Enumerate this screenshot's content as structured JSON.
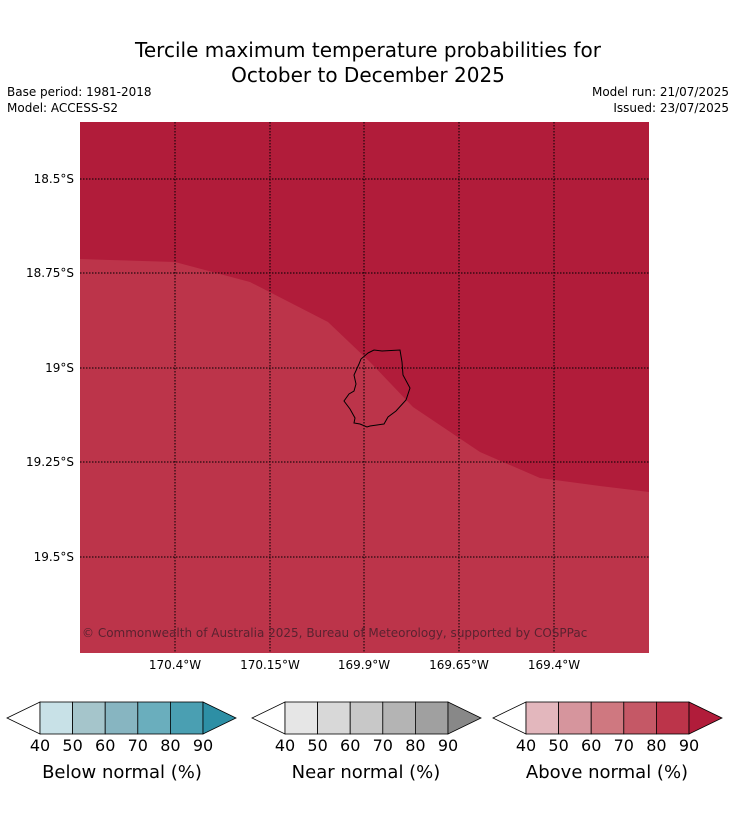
{
  "title": {
    "line1": "Tercile maximum temperature probabilities for",
    "line2": "October to December 2025"
  },
  "meta": {
    "base_period": "Base period: 1981-2018",
    "model": "Model: ACCESS-S2",
    "model_run": "Model run: 21/07/2025",
    "issued": "Issued: 23/07/2025"
  },
  "map": {
    "lat_labels": [
      "18.5°S",
      "18.75°S",
      "19°S",
      "19.25°S",
      "19.5°S"
    ],
    "lon_labels": [
      "170.4°W",
      "170.15°W",
      "169.9°W",
      "169.65°W",
      "169.4°W"
    ],
    "copyright": "© Commonwealth of Australia 2025, Bureau of Meteorology, supported by COSPPac",
    "colors": {
      "above_90": "#b11c3a",
      "above_80": "#bc344a"
    }
  },
  "legends": {
    "below": {
      "title": "Below normal (%)",
      "ticks": [
        "40",
        "50",
        "60",
        "70",
        "80",
        "90"
      ],
      "colors": [
        "#ffffff",
        "#c8e1e7",
        "#a5c5cb",
        "#87b5c1",
        "#6aaebd",
        "#4a9fb2",
        "#2d8fa5"
      ]
    },
    "near": {
      "title": "Near normal (%)",
      "ticks": [
        "40",
        "50",
        "60",
        "70",
        "80",
        "90"
      ],
      "colors": [
        "#ffffff",
        "#e6e6e6",
        "#d8d8d8",
        "#c8c8c8",
        "#b4b4b4",
        "#a0a0a0",
        "#888888"
      ]
    },
    "above": {
      "title": "Above normal (%)",
      "ticks": [
        "40",
        "50",
        "60",
        "70",
        "80",
        "90"
      ],
      "colors": [
        "#ffffff",
        "#e3b7bd",
        "#d6959d",
        "#cf7880",
        "#c55866",
        "#bc344a",
        "#b11c3a"
      ]
    }
  }
}
